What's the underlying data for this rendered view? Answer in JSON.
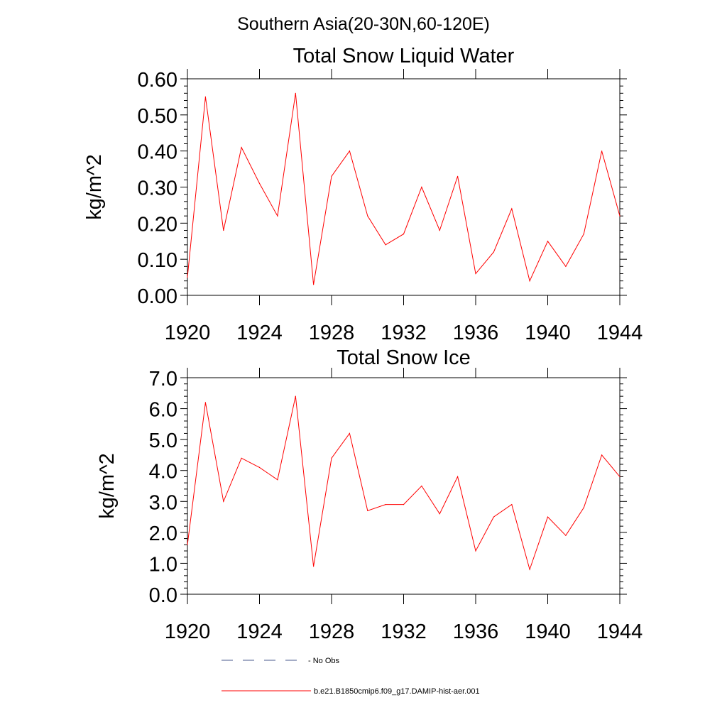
{
  "suptitle": "Southern Asia(20-30N,60-120E)",
  "colors": {
    "model_line": "#ff0000",
    "no_obs_line": "#4a5a8c",
    "axis": "#000000"
  },
  "legend": [
    {
      "label": "- No Obs",
      "style": "dashed",
      "color": "#4a5a8c"
    },
    {
      "label": "b.e21.B1850cmip6.f09_g17.DAMIP-hist-aer.001",
      "style": "solid",
      "color": "#ff0000"
    }
  ],
  "chart_data": [
    {
      "type": "line",
      "title": "Total Snow Liquid Water",
      "ylabel": "kg/m^2",
      "xlabel": "",
      "xlim": [
        1920,
        1944
      ],
      "ylim": [
        0,
        0.6
      ],
      "xticks": [
        "1920",
        "1924",
        "1928",
        "1932",
        "1936",
        "1940",
        "1944"
      ],
      "yticks": [
        "0.00",
        "0.10",
        "0.20",
        "0.30",
        "0.40",
        "0.50",
        "0.60"
      ],
      "x": [
        1920,
        1921,
        1922,
        1923,
        1924,
        1925,
        1926,
        1927,
        1928,
        1929,
        1930,
        1931,
        1932,
        1933,
        1934,
        1935,
        1936,
        1937,
        1938,
        1939,
        1940,
        1941,
        1942,
        1943,
        1944
      ],
      "series": [
        {
          "name": "b.e21.B1850cmip6.f09_g17.DAMIP-hist-aer.001",
          "values": [
            0.05,
            0.55,
            0.18,
            0.41,
            0.31,
            0.22,
            0.56,
            0.03,
            0.33,
            0.4,
            0.22,
            0.14,
            0.17,
            0.3,
            0.18,
            0.33,
            0.06,
            0.12,
            0.24,
            0.04,
            0.15,
            0.08,
            0.17,
            0.4,
            0.22
          ]
        }
      ]
    },
    {
      "type": "line",
      "title": "Total Snow Ice",
      "ylabel": "kg/m^2",
      "xlabel": "",
      "xlim": [
        1920,
        1944
      ],
      "ylim": [
        0,
        7
      ],
      "xticks": [
        "1920",
        "1924",
        "1928",
        "1932",
        "1936",
        "1940",
        "1944"
      ],
      "yticks": [
        "0.0",
        "1.0",
        "2.0",
        "3.0",
        "4.0",
        "5.0",
        "6.0",
        "7.0"
      ],
      "x": [
        1920,
        1921,
        1922,
        1923,
        1924,
        1925,
        1926,
        1927,
        1928,
        1929,
        1930,
        1931,
        1932,
        1933,
        1934,
        1935,
        1936,
        1937,
        1938,
        1939,
        1940,
        1941,
        1942,
        1943,
        1944
      ],
      "series": [
        {
          "name": "b.e21.B1850cmip6.f09_g17.DAMIP-hist-aer.001",
          "values": [
            1.6,
            6.2,
            3.0,
            4.4,
            4.1,
            3.7,
            6.4,
            0.9,
            4.4,
            5.2,
            2.7,
            2.9,
            2.9,
            3.5,
            2.6,
            3.8,
            1.4,
            2.5,
            2.9,
            0.8,
            2.5,
            1.9,
            2.8,
            4.5,
            3.8
          ]
        }
      ]
    }
  ]
}
